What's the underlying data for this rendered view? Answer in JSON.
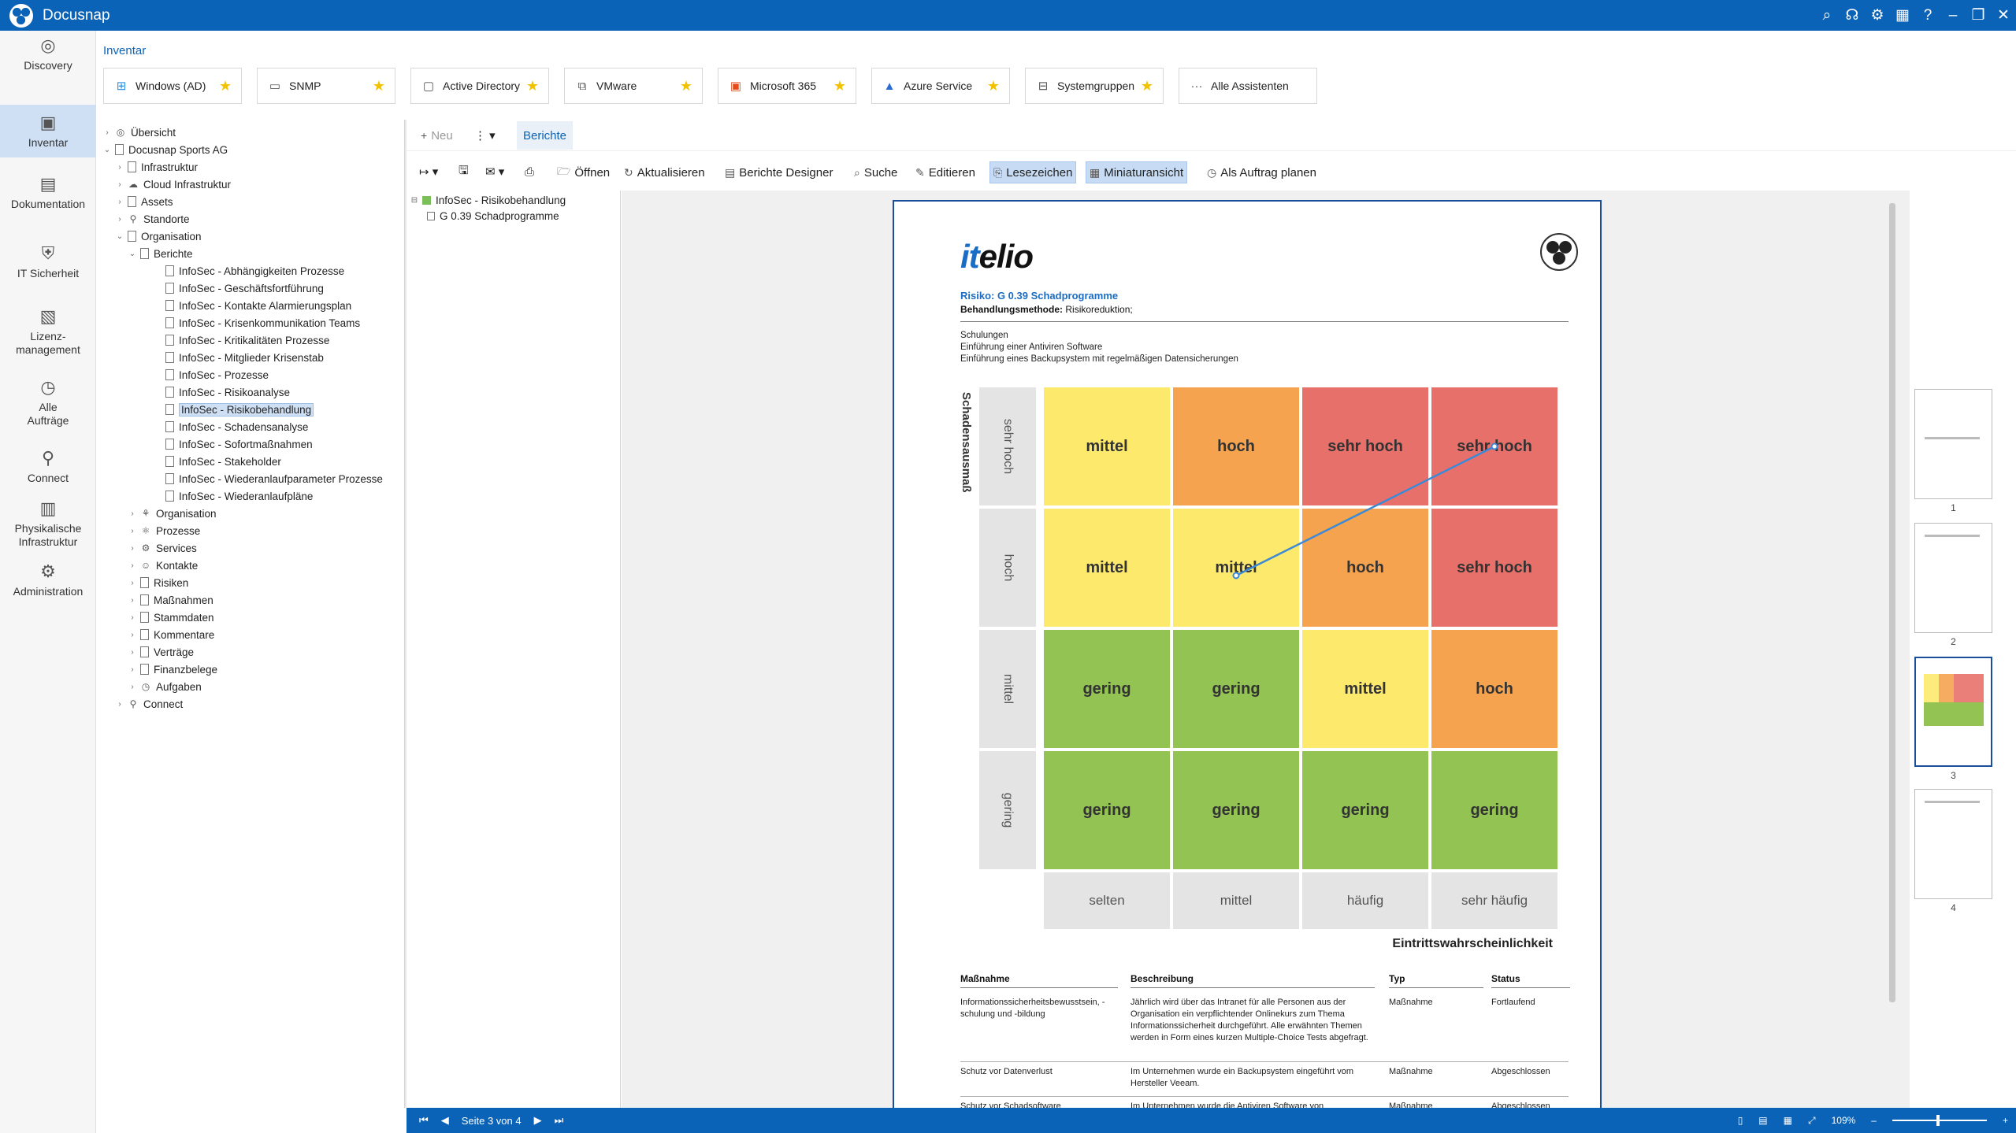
{
  "app": {
    "title": "Docusnap"
  },
  "titlebar_icons": [
    "search-icon",
    "headset-icon",
    "gear-icon",
    "layout-icon",
    "help-icon",
    "minimize-icon",
    "restore-icon",
    "close-icon"
  ],
  "nav": [
    {
      "label": "Discovery",
      "icon": "globe-icon"
    },
    {
      "label": "Inventar",
      "icon": "inventory-icon",
      "active": true
    },
    {
      "label": "Dokumentation",
      "icon": "document-icon"
    },
    {
      "label": "IT Sicherheit",
      "icon": "security-icon"
    },
    {
      "label": "Lizenz-\nmanagement",
      "icon": "license-icon"
    },
    {
      "label": "Alle\nAufträge",
      "icon": "clock-icon"
    },
    {
      "label": "Connect",
      "icon": "connect-icon"
    },
    {
      "label": "Physikalische\nInfrastruktur",
      "icon": "server-icon"
    },
    {
      "label": "Administration",
      "icon": "gears-icon"
    }
  ],
  "breadcrumb": "Inventar",
  "quick_access": [
    {
      "label": "Windows (AD)",
      "icon": "windows-icon"
    },
    {
      "label": "SNMP",
      "icon": "monitor-icon"
    },
    {
      "label": "Active Directory",
      "icon": "ad-icon"
    },
    {
      "label": "VMware",
      "icon": "vmware-icon"
    },
    {
      "label": "Microsoft 365",
      "icon": "office-icon"
    },
    {
      "label": "Azure Service",
      "icon": "azure-icon"
    },
    {
      "label": "Systemgruppen",
      "icon": "systemgroup-icon"
    },
    {
      "label": "Alle Assistenten",
      "icon": "more-icon"
    }
  ],
  "tree": [
    {
      "label": "Übersicht",
      "level": 0,
      "exp": "›",
      "icon": "globe"
    },
    {
      "label": "Docusnap Sports AG",
      "level": 0,
      "exp": "⌄",
      "icon": "doc"
    },
    {
      "label": "Infrastruktur",
      "level": 1,
      "exp": "›",
      "icon": "doc"
    },
    {
      "label": "Cloud Infrastruktur",
      "level": 1,
      "exp": "›",
      "icon": "cloud"
    },
    {
      "label": "Assets",
      "level": 1,
      "exp": "›",
      "icon": "doc"
    },
    {
      "label": "Standorte",
      "level": 1,
      "exp": "›",
      "icon": "pin"
    },
    {
      "label": "Organisation",
      "level": 1,
      "exp": "⌄",
      "icon": "doc"
    },
    {
      "label": "Berichte",
      "level": 2,
      "exp": "⌄",
      "icon": "doc"
    },
    {
      "label": "InfoSec - Abhängigkeiten Prozesse",
      "level": 3,
      "icon": "doc"
    },
    {
      "label": "InfoSec - Geschäftsfortführung",
      "level": 3,
      "icon": "doc"
    },
    {
      "label": "InfoSec - Kontakte Alarmierungsplan",
      "level": 3,
      "icon": "doc"
    },
    {
      "label": "InfoSec - Krisenkommunikation Teams",
      "level": 3,
      "icon": "doc"
    },
    {
      "label": "InfoSec - Kritikalitäten Prozesse",
      "level": 3,
      "icon": "doc"
    },
    {
      "label": "InfoSec - Mitglieder Krisenstab",
      "level": 3,
      "icon": "doc"
    },
    {
      "label": "InfoSec - Prozesse",
      "level": 3,
      "icon": "doc"
    },
    {
      "label": "InfoSec - Risikoanalyse",
      "level": 3,
      "icon": "doc"
    },
    {
      "label": "InfoSec - Risikobehandlung",
      "level": 3,
      "icon": "doc",
      "selected": true
    },
    {
      "label": "InfoSec - Schadensanalyse",
      "level": 3,
      "icon": "doc"
    },
    {
      "label": "InfoSec - Sofortmaßnahmen",
      "level": 3,
      "icon": "doc"
    },
    {
      "label": "InfoSec - Stakeholder",
      "level": 3,
      "icon": "doc"
    },
    {
      "label": "InfoSec - Wiederanlaufparameter Prozesse",
      "level": 3,
      "icon": "doc"
    },
    {
      "label": "InfoSec - Wiederanlaufpläne",
      "level": 3,
      "icon": "doc"
    },
    {
      "label": "Organisation",
      "level": 2,
      "exp": "›",
      "icon": "org"
    },
    {
      "label": "Prozesse",
      "level": 2,
      "exp": "›",
      "icon": "proc"
    },
    {
      "label": "Services",
      "level": 2,
      "exp": "›",
      "icon": "gear"
    },
    {
      "label": "Kontakte",
      "level": 2,
      "exp": "›",
      "icon": "person"
    },
    {
      "label": "Risiken",
      "level": 2,
      "exp": "›",
      "icon": "doc"
    },
    {
      "label": "Maßnahmen",
      "level": 2,
      "exp": "›",
      "icon": "doc"
    },
    {
      "label": "Stammdaten",
      "level": 2,
      "exp": "›",
      "icon": "doc"
    },
    {
      "label": "Kommentare",
      "level": 2,
      "exp": "›",
      "icon": "doc"
    },
    {
      "label": "Verträge",
      "level": 2,
      "exp": "›",
      "icon": "doc"
    },
    {
      "label": "Finanzbelege",
      "level": 2,
      "exp": "›",
      "icon": "doc"
    },
    {
      "label": "Aufgaben",
      "level": 2,
      "exp": "›",
      "icon": "clock"
    },
    {
      "label": "Connect",
      "level": 1,
      "exp": "›",
      "icon": "connect"
    }
  ],
  "toolbar1": {
    "new": "Neu",
    "tab": "Berichte"
  },
  "toolbar2": [
    {
      "label": "Öffnen",
      "icon": "folder-icon"
    },
    {
      "label": "Aktualisieren",
      "icon": "refresh-icon"
    },
    {
      "label": "Berichte Designer",
      "icon": "designer-icon"
    },
    {
      "label": "Suche",
      "icon": "search-icon"
    },
    {
      "label": "Editieren",
      "icon": "edit-icon"
    },
    {
      "label": "Lesezeichen",
      "icon": "bookmark-icon",
      "on": true
    },
    {
      "label": "Miniaturansicht",
      "icon": "thumbnail-icon",
      "on": true
    },
    {
      "label": "Als Auftrag planen",
      "icon": "clock-icon"
    }
  ],
  "doctree": {
    "root": "InfoSec - Risikobehandlung",
    "child": "G 0.39 Schadprogramme"
  },
  "report": {
    "brand_a": "it",
    "brand_b": "elio",
    "risk": "Risiko: G 0.39 Schadprogramme",
    "method_label": "Behandlungsmethode:",
    "method_value": "Risikoreduktion;",
    "measures_text": [
      "Schulungen",
      "Einführung einer Antiviren Software",
      "Einführung eines Backupsystem mit regelmäßigen Datensicherungen"
    ],
    "y_axis": "Schadensausmaß",
    "x_axis": "Eintrittswahrscheinlichkeit",
    "rows": [
      "sehr hoch",
      "hoch",
      "mittel",
      "gering"
    ],
    "cols": [
      "selten",
      "mittel",
      "häufig",
      "sehr häufig"
    ],
    "matrix": [
      [
        "mittel",
        "hoch",
        "sehr hoch",
        "sehr hoch"
      ],
      [
        "mittel",
        "mittel",
        "hoch",
        "sehr hoch"
      ],
      [
        "gering",
        "gering",
        "mittel",
        "hoch"
      ],
      [
        "gering",
        "gering",
        "gering",
        "gering"
      ]
    ],
    "colors": {
      "gering": "#92c353",
      "mittel": "#fde96c",
      "hoch": "#f5a34f",
      "sehr hoch": "#e8706a"
    },
    "arrow": {
      "from": {
        "row": "hoch",
        "col": "mittel"
      },
      "to": {
        "row": "sehr hoch",
        "col": "sehr häufig"
      }
    },
    "table_headers": [
      "Maßnahme",
      "Beschreibung",
      "Typ",
      "Status"
    ],
    "table_rows": [
      [
        "Informationssicherheitsbewusstsein, -schulung und -bildung",
        "Jährlich wird über das Intranet für alle Personen aus der Organisation ein verpflichtender Onlinekurs zum Thema Informationssicherheit durchgeführt. Alle erwähnten Themen werden in Form eines kurzen Multiple-Choice Tests abgefragt.",
        "Maßnahme",
        "Fortlaufend"
      ],
      [
        "Schutz vor Datenverlust",
        "Im Unternehmen wurde ein Backupsystem eingeführt vom Hersteller Veeam.",
        "Maßnahme",
        "Abgeschlossen"
      ],
      [
        "Schutz vor Schadsoftware",
        "Im Unternehmen wurde die Antiviren Software von",
        "Maßnahme",
        "Abgeschlossen"
      ]
    ]
  },
  "thumbnails": [
    "1",
    "2",
    "3",
    "4"
  ],
  "status": {
    "page": "Seite 3 von 4",
    "zoom": "109%"
  }
}
